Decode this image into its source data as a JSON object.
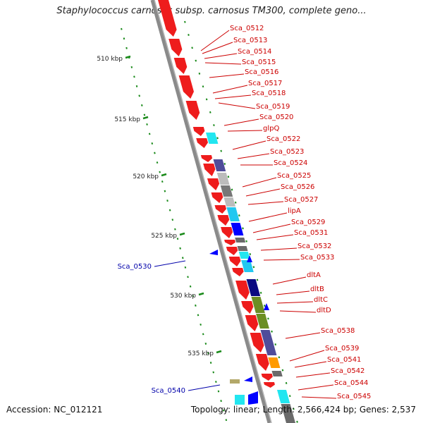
{
  "title": "Staphylococcus carnosus subsp. carnosus TM300, complete geno...",
  "footer": {
    "accession": "Accession: NC_012121",
    "summary": "Topology: linear; Length: 2,566,424 bp; Genes: 2,537"
  },
  "scale_labels": [
    "510 kbp",
    "515 kbp",
    "520 kbp",
    "525 kbp",
    "530 kbp",
    "535 kbp"
  ],
  "colors": {
    "gene_red": "#ee1c1c",
    "backbone": "#8a8a8a",
    "label_red": "#cc0000",
    "label_blue": "#0000aa",
    "tick_green": "#1a8a1a"
  },
  "genes_right": [
    "Sca_0512",
    "Sca_0513",
    "Sca_0514",
    "Sca_0515",
    "Sca_0516",
    "Sca_0517",
    "Sca_0518",
    "Sca_0519",
    "Sca_0520",
    "glpQ",
    "Sca_0522",
    "Sca_0523",
    "Sca_0524",
    "Sca_0525",
    "Sca_0526",
    "Sca_0527",
    "lipA",
    "Sca_0529",
    "Sca_0531",
    "Sca_0532",
    "Sca_0533",
    "dltA",
    "dltB",
    "dltC",
    "dltD",
    "Sca_0538",
    "Sca_0539",
    "Sca_0541",
    "Sca_0542",
    "Sca_0544",
    "Sca_0545"
  ],
  "genes_left": [
    "Sca_0530",
    "Sca_0540"
  ]
}
